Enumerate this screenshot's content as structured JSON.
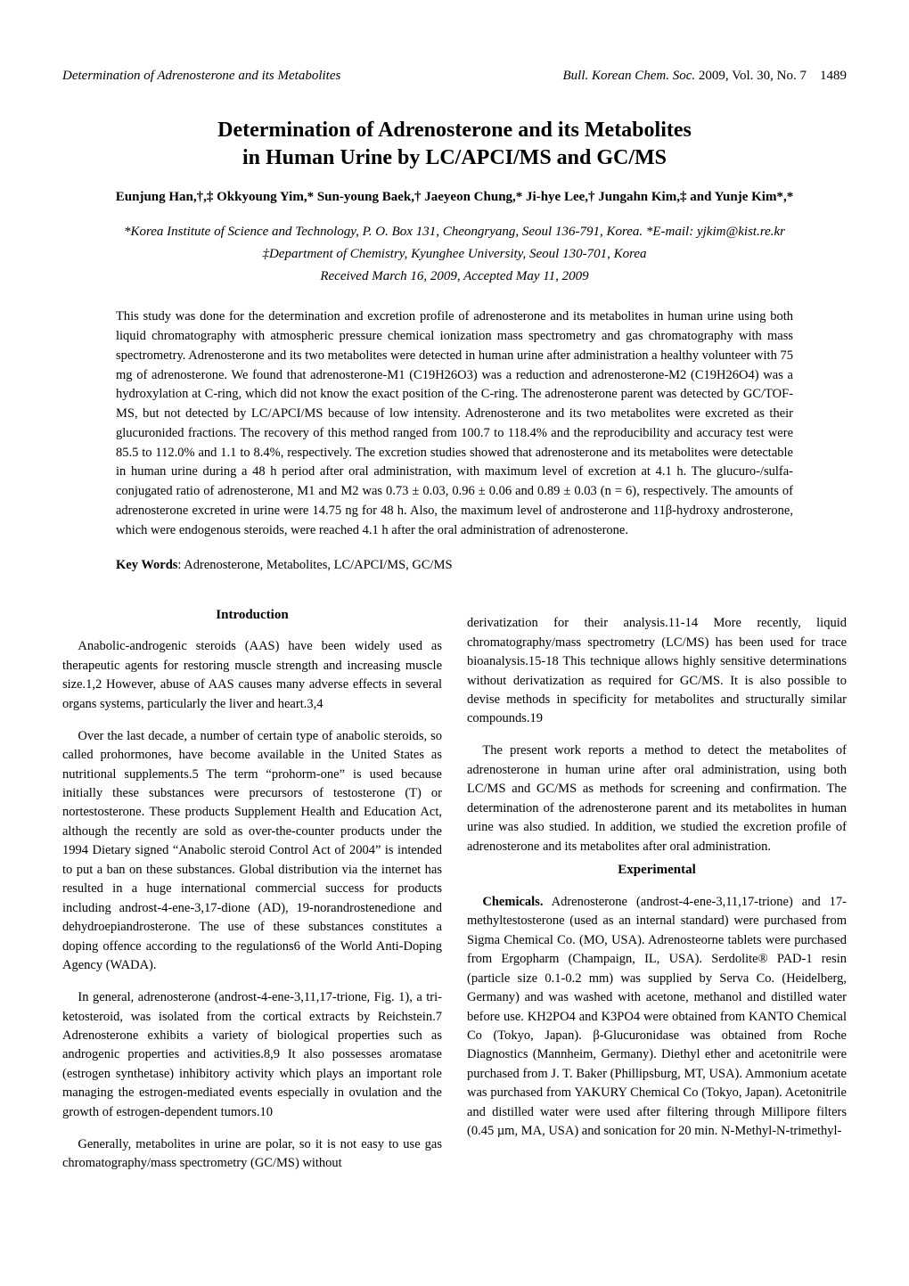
{
  "running_head": {
    "left": "Determination of Adrenosterone and its Metabolites",
    "journal": "Bull. Korean Chem. Soc.",
    "year": "2009",
    "vol": "Vol. 30, No. 7",
    "page": "1489"
  },
  "title_line1": "Determination of Adrenosterone and its Metabolites",
  "title_line2": "in Human Urine by LC/APCI/MS and GC/MS",
  "authors_html": "Eunjung Han,†,‡ Okkyoung Yim,* Sun-young Baek,† Jaeyeon Chung,* Ji-hye Lee,† Jungahn Kim,‡ and Yunje Kim*,*",
  "affil1": "*Korea Institute of Science and Technology, P. O. Box 131, Cheongryang, Seoul 136-791, Korea. *E-mail: yjkim@kist.re.kr",
  "affil2": "‡Department of Chemistry, Kyunghee University, Seoul 130-701, Korea",
  "dates": "Received March 16, 2009, Accepted May 11, 2009",
  "abstract": "This study was done for the determination and excretion profile of adrenosterone and its metabolites in human urine using both liquid chromatography with atmospheric pressure chemical ionization mass spectrometry and gas chromatography with mass spectrometry. Adrenosterone and its two metabolites were detected in human urine after administration a healthy volunteer with 75 mg of adrenosterone. We found that adrenosterone-M1 (C19H26O3) was a reduction and adrenosterone-M2 (C19H26O4) was a hydroxylation at C-ring, which did not know the exact position of the C-ring. The adrenosterone parent was detected by GC/TOF-MS, but not detected by LC/APCI/MS because of low intensity. Adrenosterone and its two metabolites were excreted as their glucuronided fractions. The recovery of this method ranged from 100.7 to 118.4% and the reproducibility and accuracy test were 85.5 to 112.0% and 1.1 to 8.4%, respectively. The excretion studies showed that adrenosterone and its metabolites were detectable in human urine during a 48 h period after oral administration, with maximum level of excretion at 4.1 h. The glucuro-/sulfa-conjugated ratio of adrenosterone, M1 and M2 was 0.73 ± 0.03, 0.96 ± 0.06 and 0.89 ± 0.03 (n = 6), respectively. The amounts of adrenosterone excreted in urine were 14.75 ng for 48 h. Also, the maximum level of androsterone and 11β-hydroxy androsterone, which were endogenous steroids, were reached 4.1 h after the oral administration of adrenosterone.",
  "keywords_label": "Key Words",
  "keywords_text": ": Adrenosterone, Metabolites, LC/APCI/MS, GC/MS",
  "sections": {
    "intro_head": "Introduction",
    "intro_p1": "Anabolic-androgenic steroids (AAS) have been widely used as therapeutic agents for restoring muscle strength and increasing muscle size.1,2 However, abuse of AAS causes many adverse effects in several organs systems, particularly the liver and heart.3,4",
    "intro_p2": "Over the last decade, a number of certain type of anabolic steroids, so called prohormones, have become available in the United States as nutritional supplements.5 The term “prohorm-one” is used because initially these substances were precursors of testosterone (T) or nortestosterone. These products Supplement Health and Education Act, although the recently are sold as over-the-counter products under the 1994 Dietary signed “Anabolic steroid Control Act of 2004” is intended to put a ban on these substances. Global distribution via the internet has resulted in a huge international commercial success for products including androst-4-ene-3,17-dione (AD), 19-norandrostenedione and dehydroepiandrosterone. The use of these substances constitutes a doping offence according to the regulations6 of the World Anti-Doping Agency (WADA).",
    "intro_p3": "In general, adrenosterone (androst-4-ene-3,11,17-trione, Fig. 1), a tri-ketosteroid, was isolated from the cortical extracts by Reichstein.7 Adrenosterone exhibits a variety of biological properties such as androgenic properties and activities.8,9 It also possesses aromatase (estrogen synthetase) inhibitory activity which plays an important role managing the estrogen-mediated events especially in ovulation and the growth of estrogen-dependent tumors.10",
    "intro_p4": "Generally, metabolites in urine are polar, so it is not easy to use gas chromatography/mass spectrometry (GC/MS) without",
    "col2_p1": "derivatization for their analysis.11-14 More recently, liquid chromatography/mass spectrometry (LC/MS) has been used for trace bioanalysis.15-18 This technique allows highly sensitive determinations without derivatization as required for GC/MS. It is also possible to devise methods in specificity for metabolites and structurally similar compounds.19",
    "col2_p2": "The present work reports a method to detect the metabolites of adrenosterone in human urine after oral administration, using both LC/MS and GC/MS as methods for screening and confirmation. The determination of the adrenosterone parent and its metabolites in human urine was also studied. In addition, we studied the excretion profile of adrenosterone and its metabolites after oral administration.",
    "exp_head": "Experimental",
    "exp_runin": "Chemicals.",
    "exp_p1": " Adrenosterone (androst-4-ene-3,11,17-trione) and 17-methyltestosterone (used as an internal standard) were purchased from Sigma Chemical Co. (MO, USA). Adrenosteorne tablets were purchased from Ergopharm (Champaign, IL, USA). Serdolite® PAD-1 resin (particle size 0.1-0.2 mm) was supplied by Serva Co. (Heidelberg, Germany) and was washed with acetone, methanol and distilled water before use. KH2PO4 and K3PO4 were obtained from KANTO Chemical Co (Tokyo, Japan). β-Glucuronidase was obtained from Roche Diagnostics (Mannheim, Germany). Diethyl ether and acetonitrile were purchased from J. T. Baker (Phillipsburg, MT, USA). Ammonium acetate was purchased from YAKURY Chemical Co (Tokyo, Japan). Acetonitrile and distilled water were used after filtering through Millipore filters (0.45 µm, MA, USA) and sonication for 20 min. N-Methyl-N-trimethyl-"
  }
}
